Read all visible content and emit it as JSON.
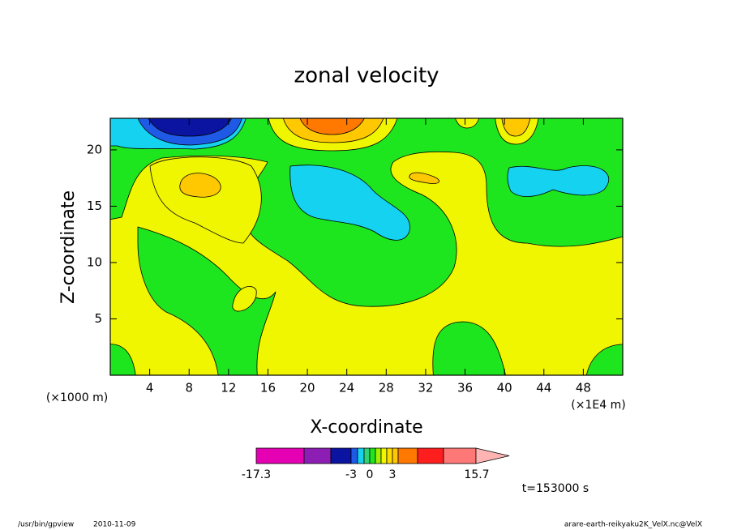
{
  "chart_data": {
    "type": "contour",
    "title": "zonal velocity",
    "xlabel": "X-coordinate",
    "ylabel": "Z-coordinate",
    "x_unit": "(×1E4 m)",
    "y_unit": "(×1000 m)",
    "xlim": [
      0,
      52
    ],
    "ylim": [
      0,
      22.8
    ],
    "xticks": [
      4,
      8,
      12,
      16,
      20,
      24,
      28,
      32,
      36,
      40,
      44,
      48
    ],
    "yticks": [
      5,
      10,
      15,
      20
    ],
    "colorbar": {
      "colors": [
        "#e600b4",
        "#8c1eb4",
        "#0a14a0",
        "#1e5ae6",
        "#14d2f0",
        "#32d278",
        "#1ee61e",
        "#a0f000",
        "#f0f500",
        "#ffdc00",
        "#ffc800",
        "#ff7800",
        "#ff1e1e",
        "#ff7878",
        "#ffb4b4"
      ],
      "ticks": [
        -17.3,
        -3,
        0,
        3,
        15.7
      ]
    },
    "time_label": "t=153000 s"
  },
  "footer": {
    "program": "/usr/bin/gpview",
    "date": "2010-11-09",
    "file": "arare-earth-reikyaku2K_VelX.nc@VelX"
  }
}
